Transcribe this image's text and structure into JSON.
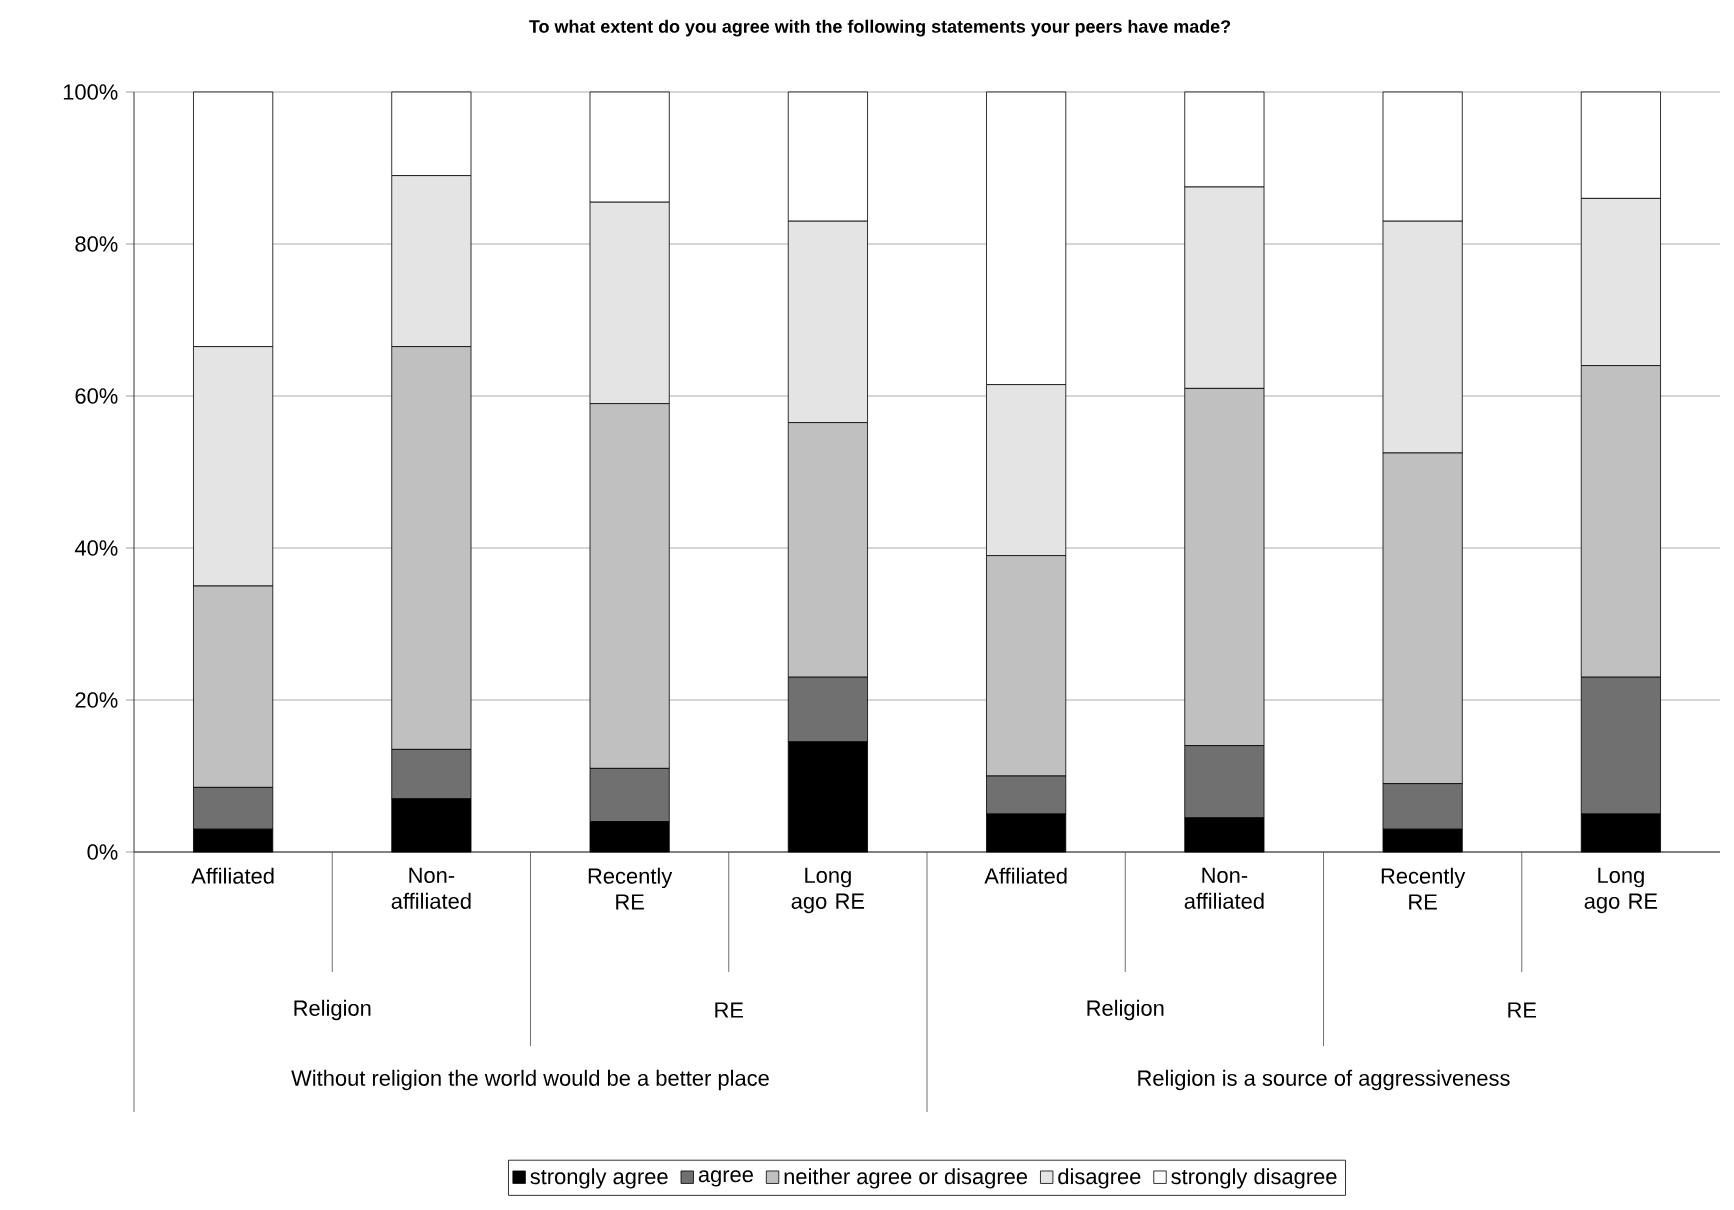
{
  "chart_data": {
    "type": "bar",
    "stacked": true,
    "title": "To what extent do you agree with the following statements your peers have made?",
    "categories": [
      "Affiliated",
      "Non-affiliated",
      "Recently RE",
      "Long ago RE",
      "Affiliated",
      "Non-affiliated",
      "Recently RE",
      "Long ago RE"
    ],
    "annotations": [
      "Religion",
      "RE",
      "Religion",
      "RE",
      "Without religion the world would be a better place",
      "Religion is a source of aggressiveness"
    ],
    "series": [
      {
        "name": "strongly agree",
        "color": "#000000",
        "values": [
          3,
          7,
          4,
          14.5,
          5,
          4.5,
          3,
          5
        ]
      },
      {
        "name": "agree",
        "color": "#707070",
        "values": [
          5.5,
          6.5,
          7,
          8.5,
          5,
          9.5,
          6,
          18
        ]
      },
      {
        "name": "neither agree or disagree",
        "color": "#c0c0c0",
        "values": [
          26.5,
          53,
          48,
          33.5,
          29,
          47,
          43.5,
          41
        ]
      },
      {
        "name": "disagree",
        "color": "#e4e4e4",
        "values": [
          31.5,
          22.5,
          26.5,
          26.5,
          22.5,
          26.5,
          30.5,
          22
        ]
      },
      {
        "name": "strongly disagree",
        "color": "#ffffff",
        "values": [
          33.5,
          11,
          14.5,
          17,
          38.5,
          12.5,
          17,
          14
        ]
      }
    ],
    "ylim": [
      0,
      100
    ],
    "yticks": [
      {
        "value": 0,
        "label": "0%"
      },
      {
        "value": 20,
        "label": "20%"
      },
      {
        "value": 40,
        "label": "40%"
      },
      {
        "value": 60,
        "label": "60%"
      },
      {
        "value": 80,
        "label": "80%"
      },
      {
        "value": 100,
        "label": "100%"
      }
    ],
    "grid": "y",
    "legend": "bottom"
  }
}
